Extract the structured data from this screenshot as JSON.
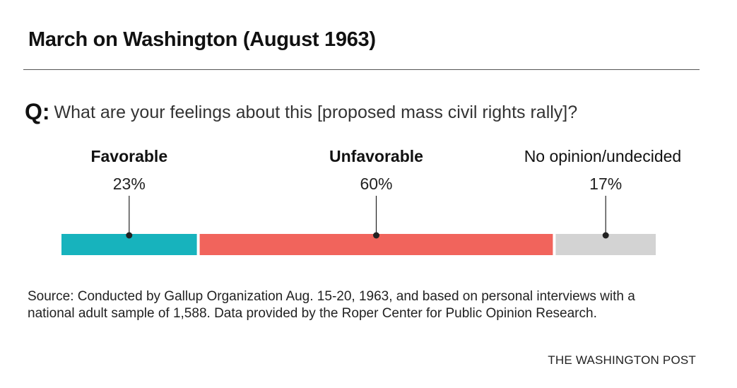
{
  "title": "March on Washington (August 1963)",
  "question": {
    "prefix": "Q:",
    "text": "What are your feelings about this [proposed mass civil rights rally]?"
  },
  "chart_data": {
    "type": "bar",
    "orientation": "horizontal-stacked",
    "categories": [
      "Favorable",
      "Unfavorable",
      "No opinion/undecided"
    ],
    "values": [
      23,
      60,
      17
    ],
    "value_labels": [
      "23%",
      "60%",
      "17%"
    ],
    "label_bold": [
      true,
      true,
      false
    ],
    "colors": [
      "#17b3bd",
      "#f1645c",
      "#d3d3d3"
    ],
    "unit": "%",
    "total": 100
  },
  "source": "Source: Conducted by Gallup Organization Aug. 15-20, 1963, and based on personal interviews with a national adult sample of 1,588. Data provided by the Roper Center for Public Opinion Research.",
  "credit": "THE WASHINGTON POST"
}
